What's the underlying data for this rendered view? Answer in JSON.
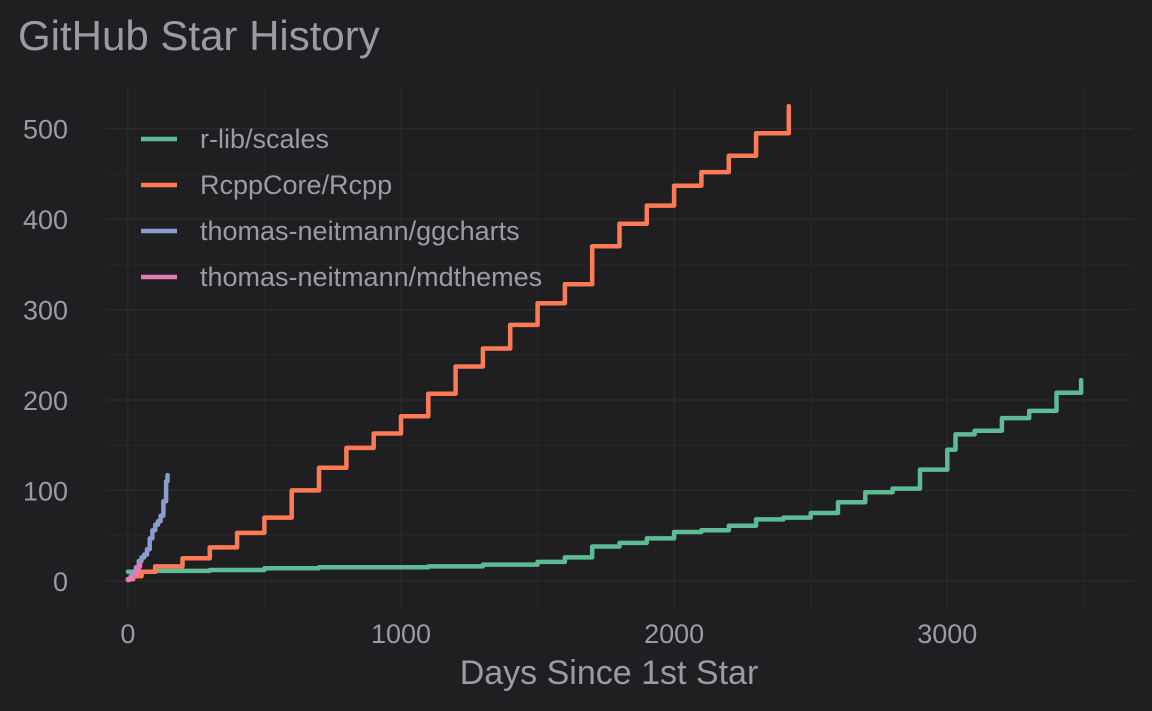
{
  "chart_data": {
    "type": "line",
    "title": "GitHub Star History",
    "xlabel": "Days Since 1st Star",
    "ylabel": "",
    "xlim": [
      -80,
      3680
    ],
    "ylim": [
      -30,
      545
    ],
    "x_ticks": [
      0,
      1000,
      2000,
      3000
    ],
    "y_ticks": [
      0,
      100,
      200,
      300,
      400,
      500
    ],
    "grid": true,
    "legend": "top-left",
    "series": [
      {
        "name": "r-lib/scales",
        "color": "#5dbb96",
        "x": [
          0,
          100,
          300,
          500,
          700,
          900,
          1100,
          1300,
          1500,
          1600,
          1700,
          1800,
          1900,
          2000,
          2100,
          2200,
          2300,
          2400,
          2500,
          2600,
          2700,
          2800,
          2900,
          3000,
          3030,
          3100,
          3200,
          3300,
          3400,
          3490
        ],
        "values": [
          10,
          11,
          12,
          14,
          15,
          15,
          16,
          18,
          21,
          26,
          38,
          42,
          47,
          54,
          56,
          61,
          68,
          70,
          75,
          87,
          98,
          102,
          123,
          145,
          162,
          166,
          180,
          188,
          208,
          222
        ]
      },
      {
        "name": "RcppCore/Rcpp",
        "color": "#fc7b56",
        "x": [
          0,
          20,
          50,
          100,
          200,
          300,
          400,
          500,
          600,
          700,
          800,
          900,
          1000,
          1100,
          1200,
          1300,
          1400,
          1500,
          1600,
          1700,
          1800,
          1900,
          2000,
          2100,
          2200,
          2300,
          2420
        ],
        "values": [
          2,
          5,
          10,
          16,
          25,
          37,
          53,
          70,
          100,
          125,
          147,
          163,
          182,
          207,
          237,
          257,
          283,
          307,
          328,
          370,
          395,
          415,
          437,
          452,
          470,
          495,
          525
        ]
      },
      {
        "name": "thomas-neitmann/ggcharts",
        "color": "#8b9dce",
        "x": [
          0,
          10,
          20,
          30,
          40,
          50,
          60,
          70,
          80,
          90,
          100,
          110,
          120,
          130,
          140,
          145
        ],
        "values": [
          2,
          5,
          10,
          15,
          22,
          26,
          29,
          35,
          47,
          56,
          62,
          66,
          72,
          88,
          110,
          117
        ]
      },
      {
        "name": "thomas-neitmann/mdthemes",
        "color": "#e27bb4",
        "x": [
          0,
          5,
          10,
          15,
          20,
          25,
          30,
          35,
          40,
          45
        ],
        "values": [
          1,
          2,
          3,
          4,
          6,
          8,
          10,
          13,
          16,
          19
        ]
      }
    ]
  }
}
